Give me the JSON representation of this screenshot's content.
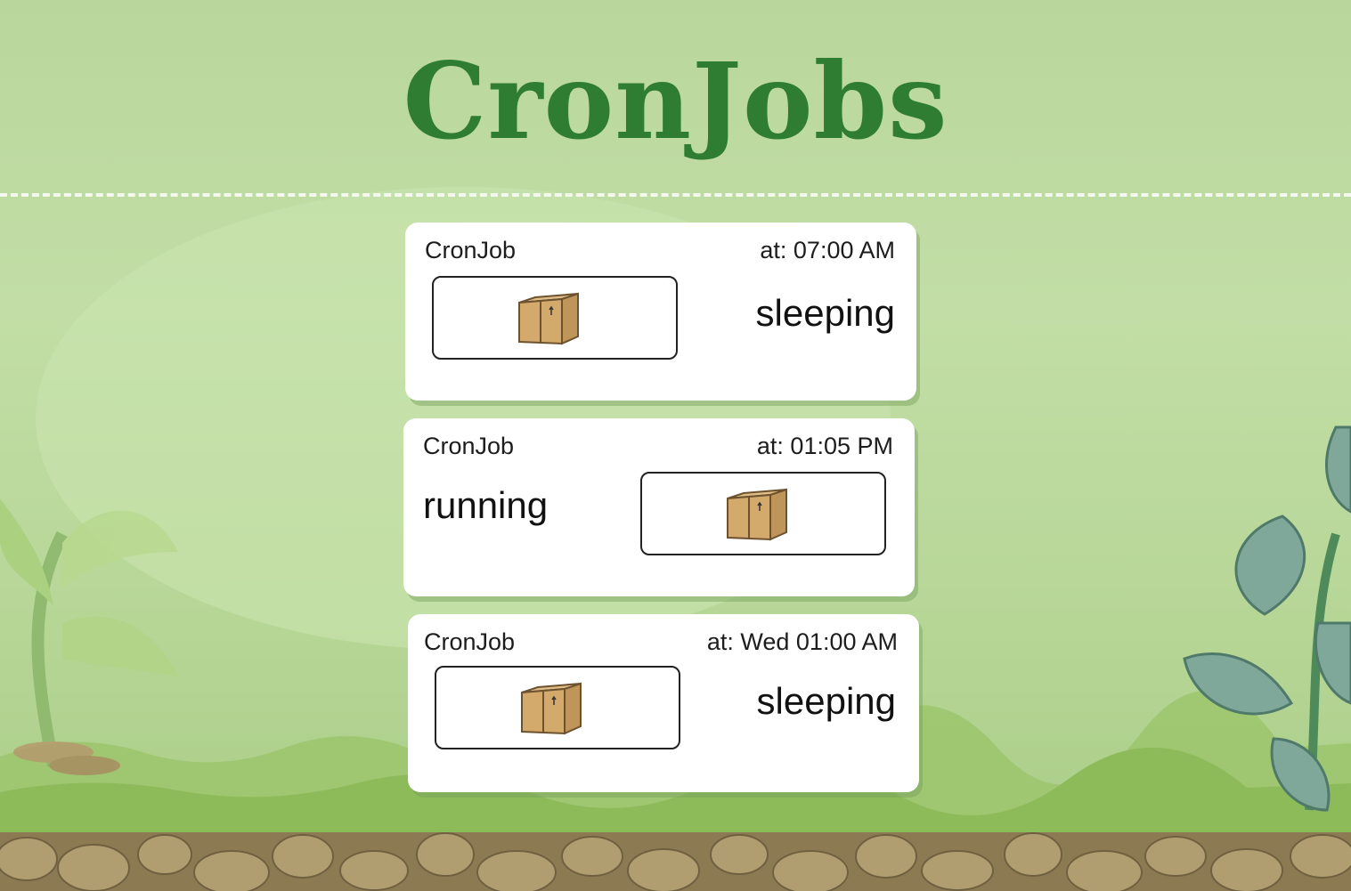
{
  "title": "CronJobs",
  "colors": {
    "title": "#2e7d32",
    "background": "#bcd9a0",
    "card": "#ffffff",
    "box": "#d8b27a"
  },
  "jobs": [
    {
      "label": "CronJob",
      "schedule": "at: 07:00 AM",
      "status": "sleeping",
      "icon": "package-box-icon"
    },
    {
      "label": "CronJob",
      "schedule": "at: 01:05 PM",
      "status": "running",
      "icon": "package-box-icon"
    },
    {
      "label": "CronJob",
      "schedule": "at: Wed 01:00 AM",
      "status": "sleeping",
      "icon": "package-box-icon"
    }
  ]
}
